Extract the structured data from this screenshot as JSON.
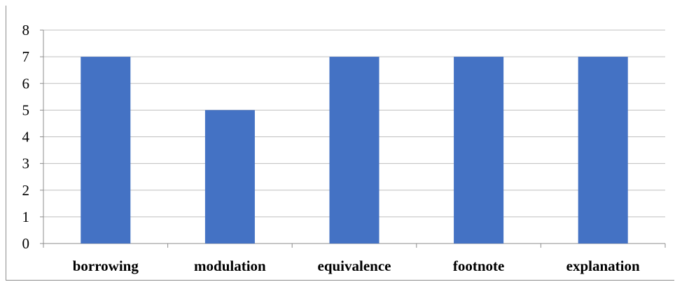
{
  "chart_data": {
    "type": "bar",
    "title": "",
    "xlabel": "",
    "ylabel": "",
    "categories": [
      "borrowing",
      "modulation",
      "equivalence",
      "footnote",
      "explanation"
    ],
    "values": [
      7,
      5,
      7,
      7,
      7
    ],
    "ylim": [
      0,
      8
    ],
    "yticks": [
      "0",
      "1",
      "2",
      "3",
      "4",
      "5",
      "6",
      "7",
      "8"
    ],
    "grid": true,
    "legend": "none",
    "bar_color": "#4472c4",
    "grid_color": "#bfbfbf"
  }
}
